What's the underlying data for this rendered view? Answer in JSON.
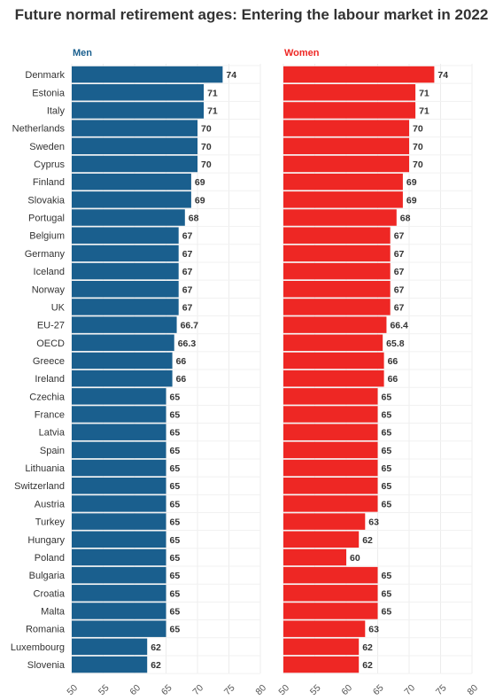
{
  "chart_data": {
    "type": "bar",
    "orientation": "horizontal",
    "title": "Future normal retirement ages: Entering the labour market in 2022",
    "categories": [
      "Denmark",
      "Estonia",
      "Italy",
      "Netherlands",
      "Sweden",
      "Cyprus",
      "Finland",
      "Slovakia",
      "Portugal",
      "Belgium",
      "Germany",
      "Iceland",
      "Norway",
      "UK",
      "EU-27",
      "OECD",
      "Greece",
      "Ireland",
      "Czechia",
      "France",
      "Latvia",
      "Spain",
      "Lithuania",
      "Switzerland",
      "Austria",
      "Turkey",
      "Hungary",
      "Poland",
      "Bulgaria",
      "Croatia",
      "Malta",
      "Romania",
      "Luxembourg",
      "Slovenia"
    ],
    "xlim": [
      50,
      80
    ],
    "xticks": [
      "50",
      "55",
      "60",
      "65",
      "70",
      "75",
      "80"
    ],
    "grid": true,
    "series": [
      {
        "name": "Men",
        "color": "#1a5f8e",
        "values": [
          74,
          71,
          71,
          70,
          70,
          70,
          69,
          69,
          68,
          67,
          67,
          67,
          67,
          67,
          66.7,
          66.3,
          66,
          66,
          65,
          65,
          65,
          65,
          65,
          65,
          65,
          65,
          65,
          65,
          65,
          65,
          65,
          65,
          62,
          62
        ],
        "labels": [
          "74",
          "71",
          "71",
          "70",
          "70",
          "70",
          "69",
          "69",
          "68",
          "67",
          "67",
          "67",
          "67",
          "67",
          "66.7",
          "66.3",
          "66",
          "66",
          "65",
          "65",
          "65",
          "65",
          "65",
          "65",
          "65",
          "65",
          "65",
          "65",
          "65",
          "65",
          "65",
          "65",
          "62",
          "62"
        ]
      },
      {
        "name": "Women",
        "color": "#ee2724",
        "values": [
          74,
          71,
          71,
          70,
          70,
          70,
          69,
          69,
          68,
          67,
          67,
          67,
          67,
          67,
          66.4,
          65.8,
          66,
          66,
          65,
          65,
          65,
          65,
          65,
          65,
          65,
          63,
          62,
          60,
          65,
          65,
          65,
          63,
          62,
          62
        ],
        "labels": [
          "74",
          "71",
          "71",
          "70",
          "70",
          "70",
          "69",
          "69",
          "68",
          "67",
          "67",
          "67",
          "67",
          "67",
          "66.4",
          "65.8",
          "66",
          "66",
          "65",
          "65",
          "65",
          "65",
          "65",
          "65",
          "65",
          "63",
          "62",
          "60",
          "65",
          "65",
          "65",
          "63",
          "62",
          "62"
        ]
      }
    ]
  }
}
